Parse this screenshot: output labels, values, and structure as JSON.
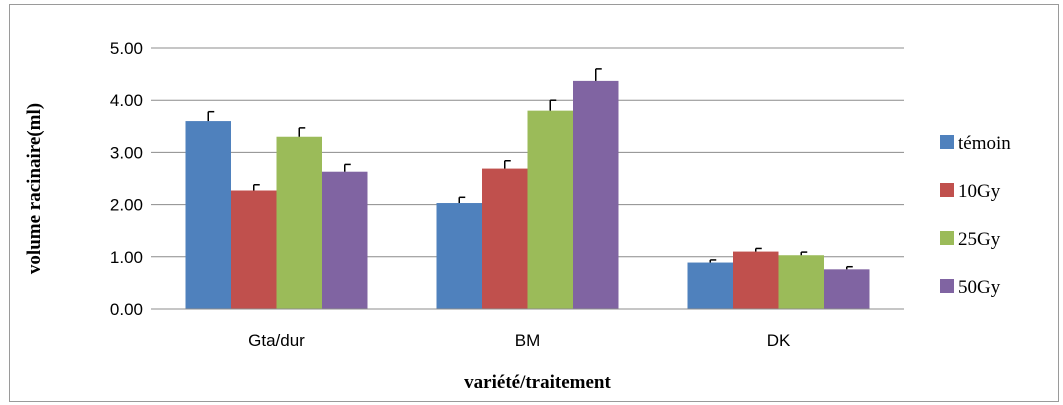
{
  "chart_data": {
    "type": "bar",
    "title": "",
    "xlabel": "variété/traitement",
    "ylabel": "volume racinaire(ml)",
    "categories": [
      "Gta/dur",
      "BM",
      "DK"
    ],
    "ylim": [
      0,
      5
    ],
    "yticks": [
      "0.00",
      "1.00",
      "2.00",
      "3.00",
      "4.00",
      "5.00"
    ],
    "grid": true,
    "legend_position": "right",
    "series": [
      {
        "name": "témoin",
        "color": "#4f81bd",
        "values": [
          3.6,
          2.03,
          0.89
        ],
        "errors": [
          0.18,
          0.11,
          0.05
        ]
      },
      {
        "name": "10Gy",
        "color": "#c0504d",
        "values": [
          2.27,
          2.69,
          1.1
        ],
        "errors": [
          0.11,
          0.15,
          0.06
        ]
      },
      {
        "name": "25Gy",
        "color": "#9bbb59",
        "values": [
          3.3,
          3.8,
          1.03
        ],
        "errors": [
          0.17,
          0.2,
          0.06
        ]
      },
      {
        "name": "50Gy",
        "color": "#8064a2",
        "values": [
          2.63,
          4.37,
          0.76
        ],
        "errors": [
          0.14,
          0.23,
          0.05
        ]
      }
    ]
  }
}
